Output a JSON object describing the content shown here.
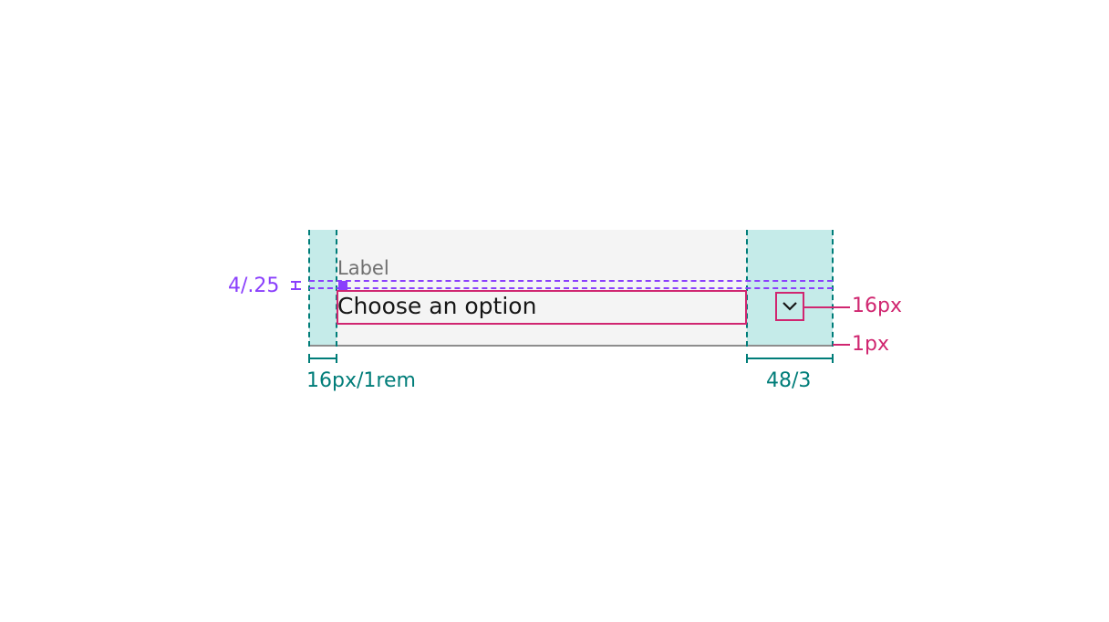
{
  "field": {
    "label": "Label",
    "value": "Choose an option"
  },
  "annotations": {
    "chevron_size": "16px",
    "border_width": "1px",
    "left_padding": "16px/1rem",
    "right_padding": "48/3",
    "label_gap": "4/.25"
  },
  "icons": {
    "chevron": "chevron-down-icon"
  },
  "colors": {
    "field_background": "#f4f4f4",
    "padding_highlight": "#c5ebe9",
    "padding_annotation": "#007d79",
    "size_annotation": "#d02670",
    "spacing_annotation": "#8a3ffc",
    "bottom_border": "#8d8d8d",
    "label_text": "#6f6f6f",
    "value_text": "#161616"
  }
}
